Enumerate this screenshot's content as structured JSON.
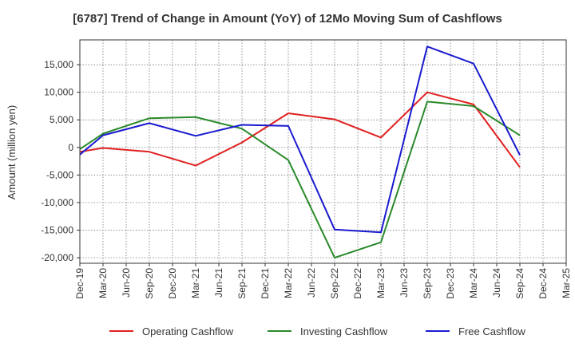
{
  "chart_data": {
    "type": "line",
    "title": "[6787]  Trend of Change in Amount (YoY) of 12Mo Moving Sum of Cashflows",
    "xlabel": "",
    "ylabel": "Amount (million yen)",
    "ylim": [
      -21000,
      19500
    ],
    "yticks": [
      -20000,
      -15000,
      -10000,
      -5000,
      0,
      5000,
      10000,
      15000
    ],
    "ytick_labels": [
      "-20,000",
      "-15,000",
      "-10,000",
      "-5,000",
      "0",
      "5,000",
      "10,000",
      "15,000"
    ],
    "categories": [
      "Dec-19",
      "Mar-20",
      "Jun-20",
      "Sep-20",
      "Dec-20",
      "Mar-21",
      "Jun-21",
      "Sep-21",
      "Dec-21",
      "Mar-22",
      "Jun-22",
      "Sep-22",
      "Dec-22",
      "Mar-23",
      "Jun-23",
      "Sep-23",
      "Dec-23",
      "Mar-24",
      "Jun-24",
      "Sep-24",
      "Dec-24",
      "Mar-25"
    ],
    "series": [
      {
        "name": "Operating Cashflow",
        "color": "#e02020",
        "values": [
          -800,
          -100,
          null,
          -800,
          null,
          -3300,
          null,
          900,
          null,
          6200,
          null,
          5100,
          null,
          1800,
          null,
          10000,
          null,
          7800,
          null,
          -3600,
          null,
          null
        ]
      },
      {
        "name": "Investing Cashflow",
        "color": "#2a8a2a",
        "values": [
          -300,
          2500,
          null,
          5300,
          null,
          5500,
          null,
          3400,
          null,
          -2300,
          null,
          -20000,
          null,
          -17200,
          null,
          8300,
          null,
          7500,
          null,
          2200,
          null,
          null
        ]
      },
      {
        "name": "Free Cashflow",
        "color": "#1a1ad0",
        "values": [
          -1300,
          2200,
          null,
          4400,
          null,
          2100,
          null,
          4100,
          null,
          3900,
          null,
          -14900,
          null,
          -15400,
          null,
          18300,
          null,
          15200,
          null,
          -1400,
          null,
          null
        ]
      }
    ],
    "grid": true,
    "legend_position": "bottom"
  }
}
